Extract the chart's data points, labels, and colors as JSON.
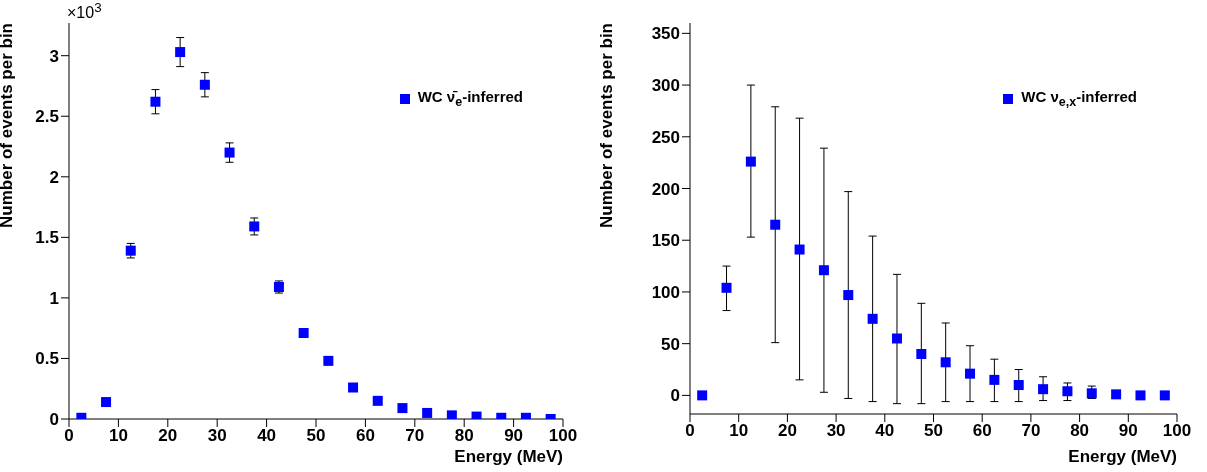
{
  "chart_data": [
    {
      "type": "scatter",
      "xlabel": "Energy (MeV)",
      "ylabel": "Number of events per bin",
      "annotations": [
        "×10$^{3}$"
      ],
      "x": [
        2.5,
        7.5,
        12.5,
        17.5,
        22.5,
        27.5,
        32.5,
        37.5,
        42.5,
        47.5,
        52.5,
        57.5,
        62.5,
        67.5,
        72.5,
        77.5,
        82.5,
        87.5,
        92.5,
        97.5
      ],
      "series": [
        {
          "name": "WC ν̄$_{e}$-inferred",
          "color": "#0000ff",
          "values": [
            0.01,
            0.14,
            1.39,
            2.62,
            3.03,
            2.76,
            2.2,
            1.59,
            1.09,
            0.71,
            0.48,
            0.26,
            0.15,
            0.09,
            0.05,
            0.03,
            0.02,
            0.01,
            0.01,
            0
          ],
          "errors": [
            null,
            null,
            0.06,
            0.1,
            0.12,
            0.1,
            0.08,
            0.07,
            0.05,
            null,
            null,
            null,
            null,
            null,
            null,
            null,
            null,
            null,
            null,
            null
          ]
        }
      ],
      "xlim": [
        0,
        100
      ],
      "xticks": [
        0,
        10,
        20,
        30,
        40,
        50,
        60,
        70,
        80,
        90,
        100
      ],
      "ylim": [
        0,
        3.27
      ],
      "yticks": [
        0,
        0.5,
        1,
        1.5,
        2,
        2.5,
        3
      ],
      "marker": "square",
      "legend": "top right",
      "grid": false
    },
    {
      "type": "scatter",
      "xlabel": "Energy (MeV)",
      "ylabel": "Number of events per bin",
      "x": [
        2.5,
        7.5,
        12.5,
        17.5,
        22.5,
        27.5,
        32.5,
        37.5,
        42.5,
        47.5,
        52.5,
        57.5,
        62.5,
        67.5,
        72.5,
        77.5,
        82.5,
        87.5,
        92.5,
        97.5
      ],
      "series": [
        {
          "name": "WC ν$_{e,x}$-inferred",
          "color": "#0000ff",
          "values": [
            0,
            104,
            226,
            165,
            141,
            121,
            97,
            74,
            55,
            40,
            32,
            21,
            15,
            10,
            6,
            4,
            2,
            1,
            0,
            0
          ],
          "errors": [
            null,
            [
              82,
              125
            ],
            [
              153,
              300
            ],
            [
              51,
              279
            ],
            [
              15,
              268
            ],
            [
              3,
              239
            ],
            [
              -3,
              197
            ],
            [
              -6,
              154
            ],
            [
              -8,
              117
            ],
            [
              -8,
              89
            ],
            [
              -6,
              70
            ],
            [
              -6,
              48
            ],
            [
              -6,
              35
            ],
            [
              -6,
              25
            ],
            [
              -5,
              18
            ],
            [
              -5,
              12
            ],
            [
              -3,
              9
            ],
            null,
            null,
            null
          ]
        }
      ],
      "xlim": [
        0,
        100
      ],
      "xticks": [
        0,
        10,
        20,
        30,
        40,
        50,
        60,
        70,
        80,
        90,
        100
      ],
      "ylim": [
        -18,
        360
      ],
      "yticks": [
        0,
        50,
        100,
        150,
        200,
        250,
        300,
        350
      ],
      "marker": "square",
      "legend": "top right",
      "grid": false
    }
  ]
}
